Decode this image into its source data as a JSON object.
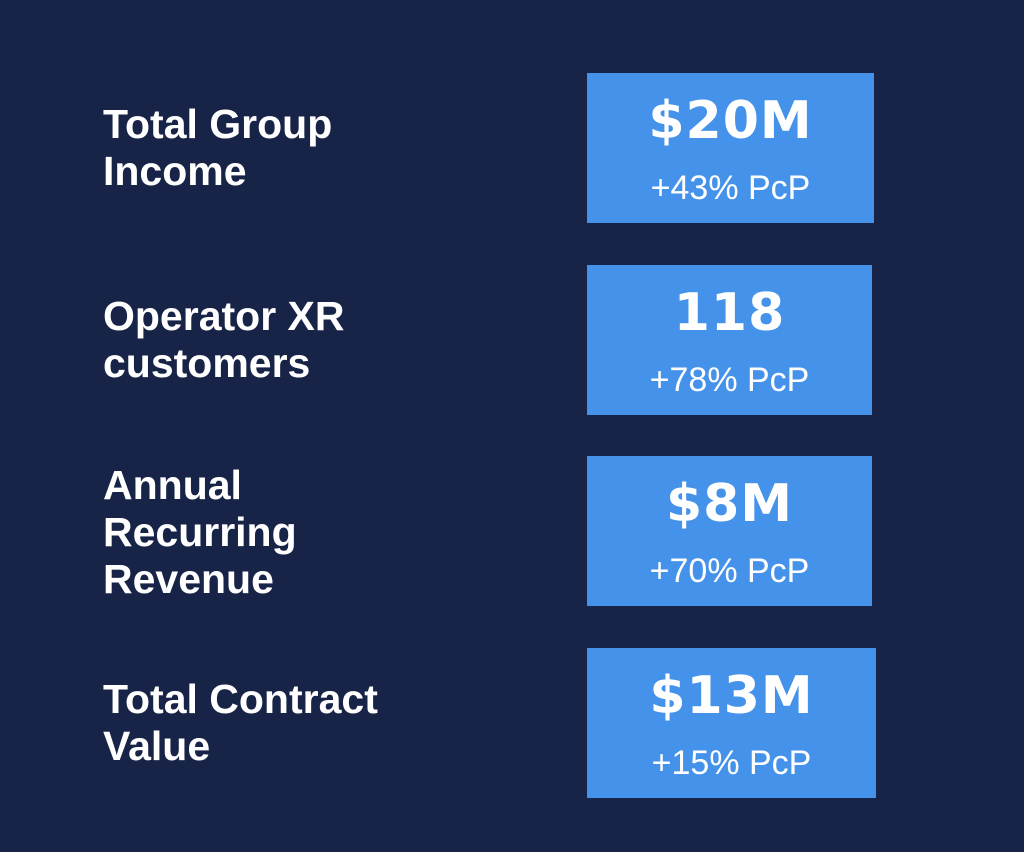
{
  "metrics": [
    {
      "label": "Total Group\nIncome",
      "value": "$20M",
      "change": "+43% PcP"
    },
    {
      "label": "Operator XR\ncustomers",
      "value": "118",
      "change": "+78% PcP"
    },
    {
      "label": "Annual\nRecurring\nRevenue",
      "value": "$8M",
      "change": "+70% PcP"
    },
    {
      "label": "Total Contract\nValue",
      "value": "$13M",
      "change": "+15% PcP"
    }
  ],
  "colors": {
    "background": "#172347",
    "card": "#4492e9",
    "text": "#ffffff"
  }
}
